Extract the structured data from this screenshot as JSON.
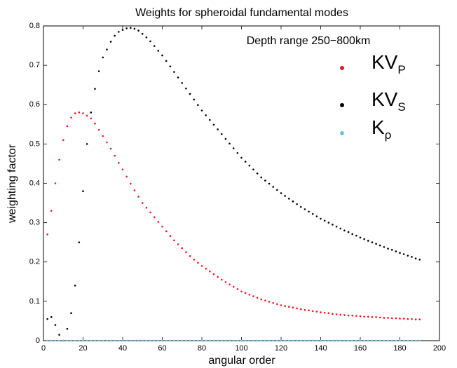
{
  "chart_data": {
    "type": "scatter",
    "title": "Weights for spheroidal fundamental modes",
    "xlabel": "angular order",
    "ylabel": "weighting factor",
    "annotation": "Depth range 250−800km",
    "xlim": [
      0,
      200
    ],
    "xticks": [
      0,
      20,
      40,
      60,
      80,
      100,
      120,
      140,
      160,
      180,
      200
    ],
    "ylim": [
      0,
      0.8
    ],
    "yticks": [
      0,
      0.1,
      0.2,
      0.3,
      0.4,
      0.5,
      0.6,
      0.7,
      0.8
    ],
    "x": [
      2,
      4,
      6,
      8,
      10,
      12,
      14,
      16,
      18,
      20,
      22,
      24,
      26,
      28,
      30,
      32,
      34,
      36,
      38,
      40,
      42,
      44,
      46,
      48,
      50,
      52,
      54,
      56,
      58,
      60,
      62,
      64,
      66,
      68,
      70,
      72,
      74,
      76,
      78,
      80,
      82,
      84,
      86,
      88,
      90,
      92,
      94,
      96,
      98,
      100,
      102,
      104,
      106,
      108,
      110,
      112,
      114,
      116,
      118,
      120,
      122,
      124,
      126,
      128,
      130,
      132,
      134,
      136,
      138,
      140,
      142,
      144,
      146,
      148,
      150,
      152,
      154,
      156,
      158,
      160,
      162,
      164,
      166,
      168,
      170,
      172,
      174,
      176,
      178,
      180,
      182,
      184,
      186,
      188,
      190
    ],
    "series": [
      {
        "name": "KV",
        "name_sub": "P",
        "color": "#e8191f",
        "values": [
          0.27,
          0.33,
          0.4,
          0.46,
          0.51,
          0.545,
          0.567,
          0.578,
          0.58,
          0.578,
          0.572,
          0.565,
          0.552,
          0.536,
          0.52,
          0.504,
          0.488,
          0.47,
          0.452,
          0.435,
          0.417,
          0.399,
          0.382,
          0.366,
          0.35,
          0.338,
          0.326,
          0.314,
          0.302,
          0.29,
          0.278,
          0.266,
          0.255,
          0.245,
          0.235,
          0.225,
          0.215,
          0.206,
          0.198,
          0.19,
          0.183,
          0.176,
          0.169,
          0.162,
          0.155,
          0.149,
          0.143,
          0.137,
          0.131,
          0.125,
          0.121,
          0.117,
          0.113,
          0.109,
          0.105,
          0.102,
          0.099,
          0.096,
          0.093,
          0.09,
          0.088,
          0.086,
          0.084,
          0.082,
          0.08,
          0.078,
          0.077,
          0.075,
          0.074,
          0.072,
          0.071,
          0.07,
          0.068,
          0.067,
          0.066,
          0.065,
          0.064,
          0.064,
          0.063,
          0.062,
          0.061,
          0.061,
          0.06,
          0.06,
          0.059,
          0.058,
          0.058,
          0.057,
          0.057,
          0.056,
          0.056,
          0.055,
          0.055,
          0.054,
          0.054
        ]
      },
      {
        "name": "KV",
        "name_sub": "S",
        "color": "#000000",
        "values": [
          0.055,
          0.06,
          0.04,
          0.015,
          0,
          0.03,
          0.07,
          0.14,
          0.25,
          0.38,
          0.5,
          0.58,
          0.64,
          0.685,
          0.72,
          0.74,
          0.76,
          0.775,
          0.785,
          0.79,
          0.794,
          0.795,
          0.793,
          0.788,
          0.78,
          0.771,
          0.761,
          0.749,
          0.737,
          0.725,
          0.711,
          0.697,
          0.683,
          0.669,
          0.655,
          0.641,
          0.627,
          0.613,
          0.599,
          0.585,
          0.573,
          0.561,
          0.549,
          0.537,
          0.525,
          0.513,
          0.501,
          0.489,
          0.477,
          0.465,
          0.455,
          0.445,
          0.435,
          0.425,
          0.415,
          0.407,
          0.399,
          0.391,
          0.383,
          0.375,
          0.368,
          0.361,
          0.354,
          0.347,
          0.34,
          0.334,
          0.328,
          0.322,
          0.316,
          0.31,
          0.305,
          0.3,
          0.295,
          0.29,
          0.285,
          0.28,
          0.276,
          0.271,
          0.267,
          0.262,
          0.258,
          0.254,
          0.25,
          0.246,
          0.242,
          0.238,
          0.234,
          0.231,
          0.227,
          0.223,
          0.22,
          0.216,
          0.213,
          0.209,
          0.206
        ]
      },
      {
        "name": "K",
        "name_sub": "ρ",
        "color": "#5bc8e8",
        "values": [
          0,
          0,
          0,
          0,
          0,
          0,
          0,
          0,
          0,
          0,
          0,
          0,
          0,
          0,
          0,
          0,
          0,
          0,
          0,
          0,
          0,
          0,
          0,
          0,
          0,
          0,
          0,
          0,
          0,
          0,
          0,
          0,
          0,
          0,
          0,
          0,
          0,
          0,
          0,
          0,
          0,
          0,
          0,
          0,
          0,
          0,
          0,
          0,
          0,
          0,
          0,
          0,
          0,
          0,
          0,
          0,
          0,
          0,
          0,
          0,
          0,
          0,
          0,
          0,
          0,
          0,
          0,
          0,
          0,
          0,
          0,
          0,
          0,
          0,
          0,
          0,
          0,
          0,
          0,
          0,
          0,
          0,
          0,
          0,
          0,
          0,
          0,
          0,
          0,
          0,
          0,
          0,
          0,
          0,
          0
        ]
      }
    ]
  }
}
